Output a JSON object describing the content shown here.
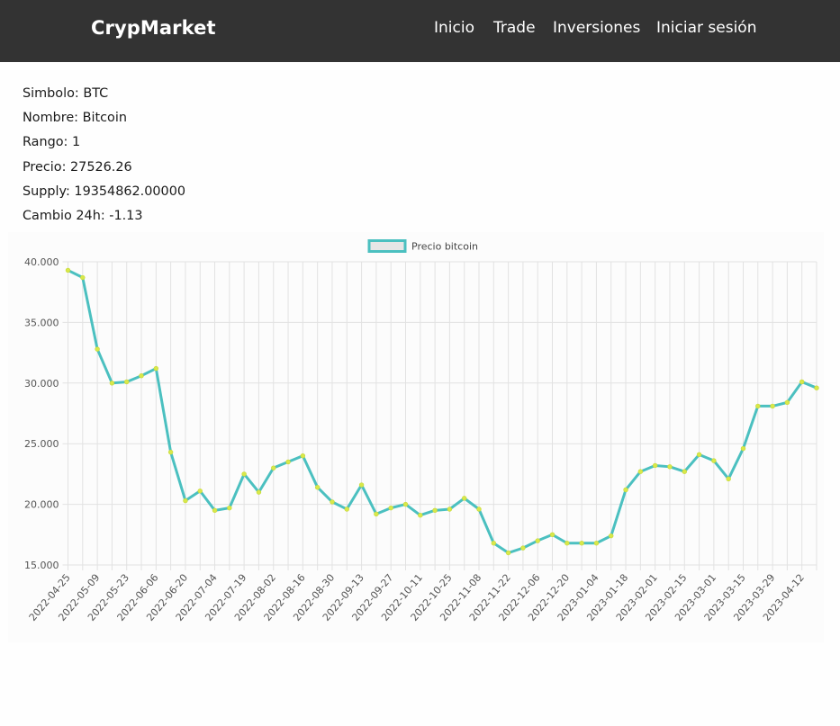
{
  "navbar": {
    "brand": "CrypMarket",
    "links": [
      "Inicio",
      "Trade",
      "Inversiones",
      "Iniciar sesión"
    ]
  },
  "coin": {
    "simbolo": "Simbolo: BTC",
    "nombre": "Nombre: Bitcoin",
    "rango": "Rango: 1",
    "precio": "Precio: 27526.26",
    "supply": "Supply: 19354862.00000",
    "cambio": "Cambio 24h: -1.13"
  },
  "colors": {
    "navbar_bg": "#333333",
    "line": "#4bc0c0",
    "point": "#d8e84a"
  },
  "chart_data": {
    "type": "line",
    "legend": "Precio bitcoin",
    "legend_position": "top",
    "grid": true,
    "ylim": [
      15000,
      40000
    ],
    "y_ticks": [
      "40.000",
      "35.000",
      "30.000",
      "25.000",
      "20.000",
      "15.000"
    ],
    "x_tick_labels": [
      "2022-04-25",
      "2022-05-09",
      "2022-05-23",
      "2022-06-06",
      "2022-06-20",
      "2022-07-04",
      "2022-07-19",
      "2022-08-02",
      "2022-08-16",
      "2022-08-30",
      "2022-09-13",
      "2022-09-27",
      "2022-10-11",
      "2022-10-25",
      "2022-11-08",
      "2022-11-22",
      "2022-12-06",
      "2022-12-20",
      "2023-01-04",
      "2023-01-18",
      "2023-02-01",
      "2023-02-15",
      "2023-03-01",
      "2023-03-15",
      "2023-03-29",
      "2023-04-12"
    ],
    "series": [
      {
        "name": "Precio bitcoin",
        "values": [
          39300,
          38700,
          32800,
          30000,
          30100,
          30600,
          31200,
          24300,
          20300,
          21100,
          19500,
          19700,
          22500,
          21000,
          23000,
          23500,
          24000,
          21400,
          20200,
          19600,
          21600,
          19200,
          19700,
          20000,
          19100,
          19500,
          19600,
          20500,
          19600,
          16800,
          16000,
          16400,
          17000,
          17500,
          16800,
          16800,
          16800,
          17400,
          21200,
          22700,
          23200,
          23100,
          22700,
          24100,
          23600,
          22100,
          24600,
          28100,
          28100,
          28400,
          30100,
          29600
        ]
      }
    ]
  }
}
